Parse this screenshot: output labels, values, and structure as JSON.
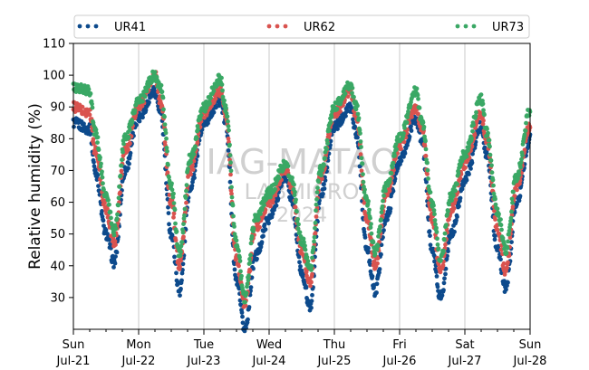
{
  "chart_data": {
    "type": "scatter",
    "xlabel": "",
    "ylabel": "Relative humidity (%)",
    "ylim": [
      20,
      110
    ],
    "yticks": [
      30,
      40,
      50,
      60,
      70,
      80,
      90,
      100,
      110
    ],
    "xlim": [
      "2024-07-21",
      "2024-07-28"
    ],
    "xticks": [
      {
        "day": "Sun",
        "date": "Jul-21"
      },
      {
        "day": "Mon",
        "date": "Jul-22"
      },
      {
        "day": "Tue",
        "date": "Jul-23"
      },
      {
        "day": "Wed",
        "date": "Jul-24"
      },
      {
        "day": "Thu",
        "date": "Jul-25"
      },
      {
        "day": "Fri",
        "date": "Jul-26"
      },
      {
        "day": "Sat",
        "date": "Jul-27"
      },
      {
        "day": "Sun",
        "date": "Jul-28"
      }
    ],
    "grid": "vertical at daily ticks",
    "legend": {
      "placement": "top",
      "columns": 3
    },
    "watermark": [
      "IAG-MATAO",
      "LABMICRO",
      "2024"
    ],
    "series": [
      {
        "name": "UR41",
        "color": "#0d4a8c",
        "anchors": [
          [
            "2024-07-21T00:00",
            85
          ],
          [
            "2024-07-21T06:00",
            83
          ],
          [
            "2024-07-21T08:00",
            70
          ],
          [
            "2024-07-21T12:00",
            50
          ],
          [
            "2024-07-21T15:00",
            41
          ],
          [
            "2024-07-21T19:00",
            70
          ],
          [
            "2024-07-22T00:00",
            87
          ],
          [
            "2024-07-22T06:00",
            95
          ],
          [
            "2024-07-22T08:00",
            88
          ],
          [
            "2024-07-22T12:00",
            50
          ],
          [
            "2024-07-22T15:00",
            32
          ],
          [
            "2024-07-22T19:00",
            65
          ],
          [
            "2024-07-23T00:00",
            85
          ],
          [
            "2024-07-23T06:00",
            92
          ],
          [
            "2024-07-23T08:00",
            85
          ],
          [
            "2024-07-23T12:00",
            35
          ],
          [
            "2024-07-23T15:00",
            20
          ],
          [
            "2024-07-23T19:00",
            43
          ],
          [
            "2024-07-24T00:00",
            55
          ],
          [
            "2024-07-24T06:00",
            68
          ],
          [
            "2024-07-24T08:00",
            62
          ],
          [
            "2024-07-24T12:00",
            38
          ],
          [
            "2024-07-24T15:00",
            27
          ],
          [
            "2024-07-24T19:00",
            62
          ],
          [
            "2024-07-25T00:00",
            84
          ],
          [
            "2024-07-25T06:00",
            90
          ],
          [
            "2024-07-25T08:00",
            82
          ],
          [
            "2024-07-25T12:00",
            45
          ],
          [
            "2024-07-25T15:00",
            32
          ],
          [
            "2024-07-25T19:00",
            55
          ],
          [
            "2024-07-26T00:00",
            73
          ],
          [
            "2024-07-26T06:00",
            86
          ],
          [
            "2024-07-26T08:00",
            80
          ],
          [
            "2024-07-26T12:00",
            45
          ],
          [
            "2024-07-26T15:00",
            30
          ],
          [
            "2024-07-26T19:00",
            50
          ],
          [
            "2024-07-27T00:00",
            67
          ],
          [
            "2024-07-27T06:00",
            84
          ],
          [
            "2024-07-27T08:00",
            75
          ],
          [
            "2024-07-27T12:00",
            45
          ],
          [
            "2024-07-27T15:00",
            33
          ],
          [
            "2024-07-27T19:00",
            60
          ],
          [
            "2024-07-28T00:00",
            80
          ]
        ]
      },
      {
        "name": "UR62",
        "color": "#d9534f",
        "anchors": [
          [
            "2024-07-21T00:00",
            90
          ],
          [
            "2024-07-21T06:00",
            88
          ],
          [
            "2024-07-21T08:00",
            76
          ],
          [
            "2024-07-21T12:00",
            58
          ],
          [
            "2024-07-21T15:00",
            47
          ],
          [
            "2024-07-21T19:00",
            76
          ],
          [
            "2024-07-22T00:00",
            90
          ],
          [
            "2024-07-22T06:00",
            100
          ],
          [
            "2024-07-22T08:00",
            92
          ],
          [
            "2024-07-22T12:00",
            60
          ],
          [
            "2024-07-22T15:00",
            40
          ],
          [
            "2024-07-22T19:00",
            70
          ],
          [
            "2024-07-23T00:00",
            88
          ],
          [
            "2024-07-23T06:00",
            95
          ],
          [
            "2024-07-23T08:00",
            88
          ],
          [
            "2024-07-23T12:00",
            42
          ],
          [
            "2024-07-23T15:00",
            28
          ],
          [
            "2024-07-23T19:00",
            52
          ],
          [
            "2024-07-24T00:00",
            60
          ],
          [
            "2024-07-24T06:00",
            70
          ],
          [
            "2024-07-24T08:00",
            66
          ],
          [
            "2024-07-24T12:00",
            45
          ],
          [
            "2024-07-24T15:00",
            35
          ],
          [
            "2024-07-24T19:00",
            68
          ],
          [
            "2024-07-25T00:00",
            88
          ],
          [
            "2024-07-25T06:00",
            95
          ],
          [
            "2024-07-25T08:00",
            87
          ],
          [
            "2024-07-25T12:00",
            55
          ],
          [
            "2024-07-25T15:00",
            40
          ],
          [
            "2024-07-25T19:00",
            62
          ],
          [
            "2024-07-26T00:00",
            78
          ],
          [
            "2024-07-26T06:00",
            90
          ],
          [
            "2024-07-26T08:00",
            84
          ],
          [
            "2024-07-26T12:00",
            55
          ],
          [
            "2024-07-26T15:00",
            38
          ],
          [
            "2024-07-26T19:00",
            58
          ],
          [
            "2024-07-27T00:00",
            72
          ],
          [
            "2024-07-27T06:00",
            88
          ],
          [
            "2024-07-27T08:00",
            80
          ],
          [
            "2024-07-27T12:00",
            52
          ],
          [
            "2024-07-27T15:00",
            38
          ],
          [
            "2024-07-27T19:00",
            65
          ],
          [
            "2024-07-28T00:00",
            84
          ]
        ]
      },
      {
        "name": "UR73",
        "color": "#3aa865",
        "anchors": [
          [
            "2024-07-21T00:00",
            96
          ],
          [
            "2024-07-21T06:00",
            95
          ],
          [
            "2024-07-21T08:00",
            82
          ],
          [
            "2024-07-21T12:00",
            62
          ],
          [
            "2024-07-21T15:00",
            51
          ],
          [
            "2024-07-21T19:00",
            80
          ],
          [
            "2024-07-22T00:00",
            92
          ],
          [
            "2024-07-22T06:00",
            100
          ],
          [
            "2024-07-22T08:00",
            96
          ],
          [
            "2024-07-22T12:00",
            65
          ],
          [
            "2024-07-22T15:00",
            44
          ],
          [
            "2024-07-22T19:00",
            74
          ],
          [
            "2024-07-23T00:00",
            90
          ],
          [
            "2024-07-23T06:00",
            99
          ],
          [
            "2024-07-23T08:00",
            90
          ],
          [
            "2024-07-23T12:00",
            47
          ],
          [
            "2024-07-23T15:00",
            30
          ],
          [
            "2024-07-23T19:00",
            55
          ],
          [
            "2024-07-24T00:00",
            63
          ],
          [
            "2024-07-24T06:00",
            72
          ],
          [
            "2024-07-24T08:00",
            68
          ],
          [
            "2024-07-24T12:00",
            48
          ],
          [
            "2024-07-24T15:00",
            39
          ],
          [
            "2024-07-24T19:00",
            70
          ],
          [
            "2024-07-25T00:00",
            90
          ],
          [
            "2024-07-25T06:00",
            97
          ],
          [
            "2024-07-25T08:00",
            90
          ],
          [
            "2024-07-25T12:00",
            60
          ],
          [
            "2024-07-25T15:00",
            44
          ],
          [
            "2024-07-25T19:00",
            65
          ],
          [
            "2024-07-26T00:00",
            80
          ],
          [
            "2024-07-26T06:00",
            95
          ],
          [
            "2024-07-26T08:00",
            86
          ],
          [
            "2024-07-26T12:00",
            60
          ],
          [
            "2024-07-26T15:00",
            42
          ],
          [
            "2024-07-26T19:00",
            62
          ],
          [
            "2024-07-27T00:00",
            75
          ],
          [
            "2024-07-27T06:00",
            93
          ],
          [
            "2024-07-27T08:00",
            82
          ],
          [
            "2024-07-27T12:00",
            57
          ],
          [
            "2024-07-27T15:00",
            45
          ],
          [
            "2024-07-27T19:00",
            68
          ],
          [
            "2024-07-28T00:00",
            89
          ]
        ]
      }
    ]
  }
}
